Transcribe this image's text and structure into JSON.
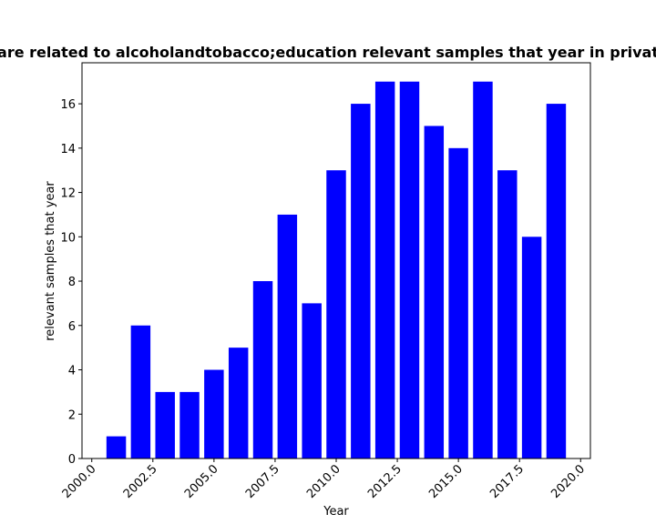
{
  "chart_data": {
    "type": "bar",
    "title": "are related to alcoholandtobacco;education relevant samples that year in privat",
    "xlabel": "Year",
    "ylabel": "relevant samples that year",
    "x": [
      2001,
      2002,
      2003,
      2004,
      2005,
      2006,
      2007,
      2008,
      2009,
      2010,
      2011,
      2012,
      2013,
      2014,
      2015,
      2016,
      2017,
      2018,
      2019
    ],
    "values": [
      1,
      6,
      3,
      3,
      4,
      5,
      8,
      11,
      7,
      13,
      16,
      17,
      17,
      15,
      14,
      17,
      13,
      10,
      16
    ],
    "xlim": [
      1999.6,
      2020.4
    ],
    "ylim": [
      0,
      17.85
    ],
    "xticks": [
      "2000.0",
      "2002.5",
      "2005.0",
      "2007.5",
      "2010.0",
      "2012.5",
      "2015.0",
      "2017.5",
      "2020.0"
    ],
    "xtick_values": [
      2000.0,
      2002.5,
      2005.0,
      2007.5,
      2010.0,
      2012.5,
      2015.0,
      2017.5,
      2020.0
    ],
    "yticks": [
      "0",
      "2",
      "4",
      "6",
      "8",
      "10",
      "12",
      "14",
      "16"
    ],
    "ytick_values": [
      0,
      2,
      4,
      6,
      8,
      10,
      12,
      14,
      16
    ],
    "bar_color": "#0000ff",
    "grid": false,
    "legend": "none"
  }
}
